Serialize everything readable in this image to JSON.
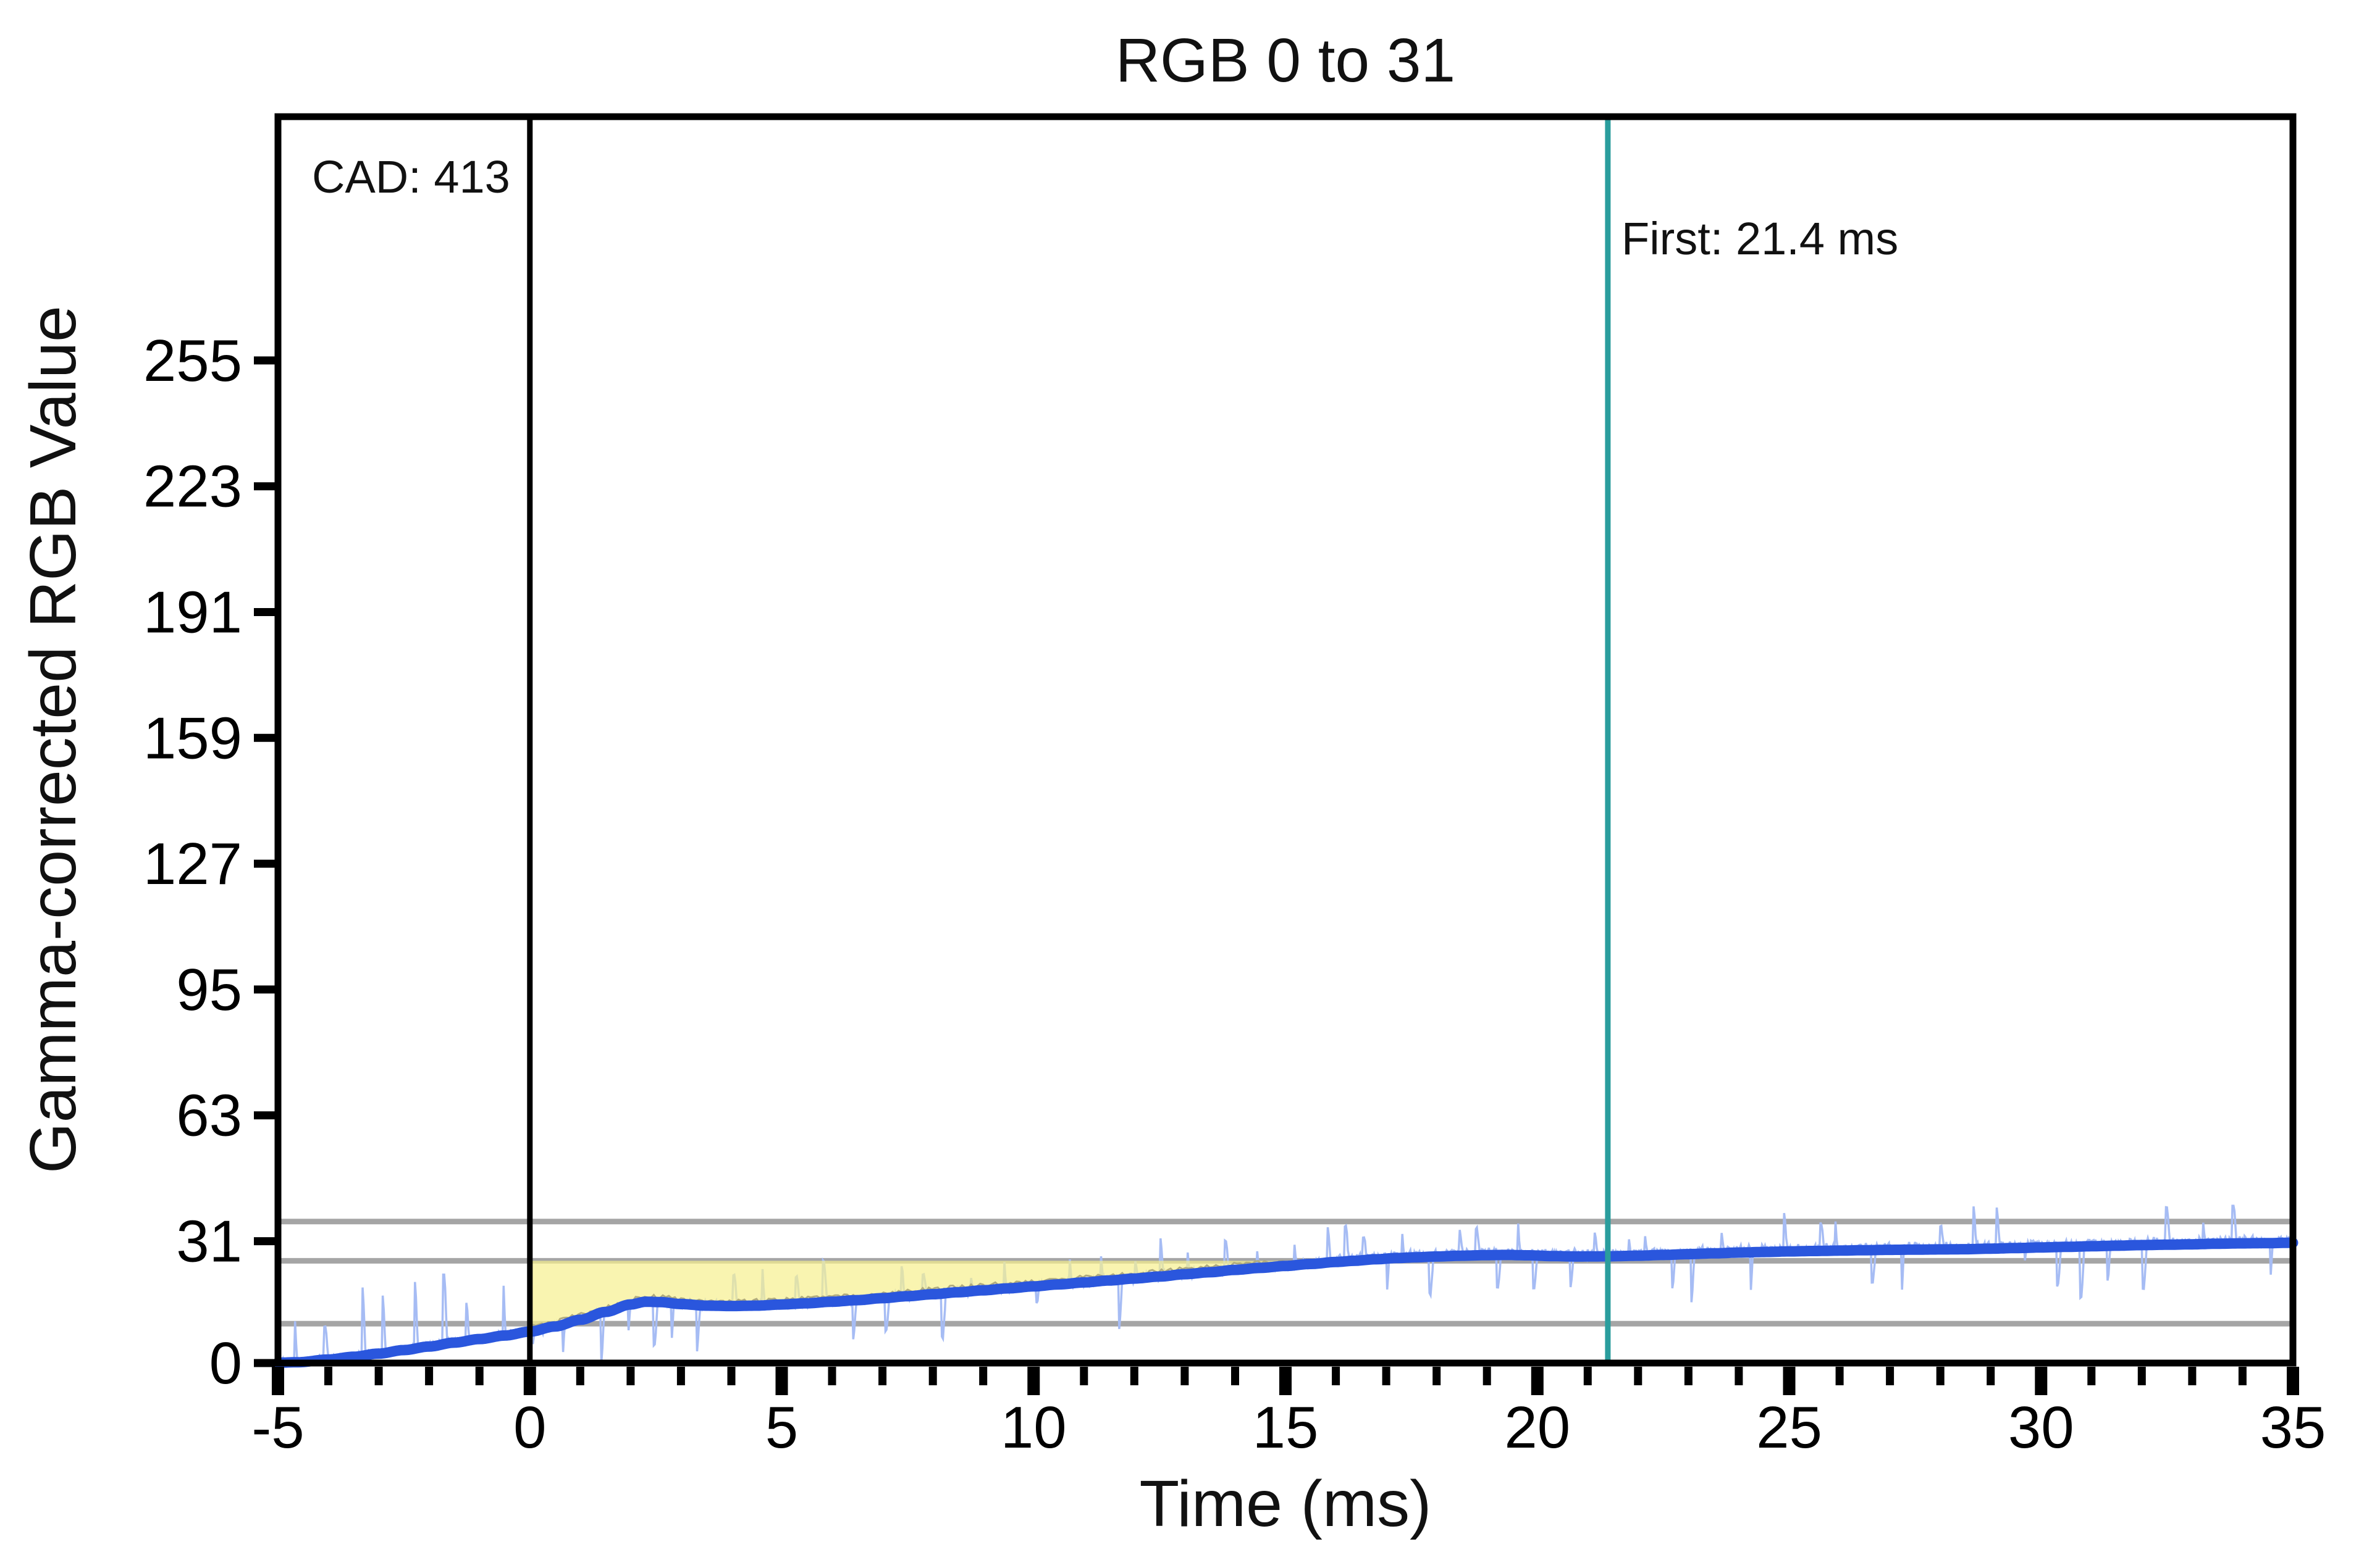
{
  "chart_data": {
    "type": "line",
    "title": "RGB 0 to 31",
    "xlabel": "Time (ms)",
    "ylabel": "Gamma-corrected RGB Value",
    "xlim": [
      -5,
      35
    ],
    "ylim": [
      0,
      317
    ],
    "x_major_ticks": [
      -5,
      0,
      5,
      10,
      15,
      20,
      25,
      30,
      35
    ],
    "x_minor_step": 1,
    "y_ticks": [
      0,
      31,
      63,
      95,
      127,
      159,
      191,
      223,
      255
    ],
    "grid": "off",
    "legend": "none",
    "annotations": {
      "cad": "CAD: 413",
      "first": "First: 21.4 ms"
    },
    "vertical_lines": [
      {
        "name": "transition-start",
        "x": 0,
        "color": "#000000"
      },
      {
        "name": "first-response",
        "x": 21.4,
        "color": "#2A9D9D"
      }
    ],
    "tolerance_lines": {
      "values": [
        10,
        26,
        36
      ],
      "color": "#A5A5A5"
    },
    "deviation_area": {
      "x_start": 0,
      "x_end": 16.35,
      "top_value": 26,
      "color": "#F6EF8E",
      "opacity": 0.7,
      "edge_color": "#B0AB7E"
    },
    "series": [
      {
        "name": "raw",
        "color": "#A6BCF4",
        "style": "noisy",
        "noise_seed": 42,
        "spike_interval_ms": 0.45,
        "spike_amplitude_rgb": 9,
        "pre_zero_max": 22.5,
        "post_max": 40
      },
      {
        "name": "smoothed",
        "color": "#2A56DD",
        "keypoints": [
          [
            -5,
            0.1
          ],
          [
            -4.6,
            0.2
          ],
          [
            -4,
            0.9
          ],
          [
            -3.5,
            1.6
          ],
          [
            -3,
            2.4
          ],
          [
            -2.5,
            3.3
          ],
          [
            -2,
            4.2
          ],
          [
            -1.5,
            5.2
          ],
          [
            -1,
            6.1
          ],
          [
            -0.5,
            7.0
          ],
          [
            0,
            8.0
          ],
          [
            0.5,
            9.3
          ],
          [
            1,
            11.0
          ],
          [
            1.5,
            13.0
          ],
          [
            2,
            14.9
          ],
          [
            2.3,
            15.6
          ],
          [
            2.6,
            15.5
          ],
          [
            3,
            15.0
          ],
          [
            3.5,
            14.6
          ],
          [
            4,
            14.5
          ],
          [
            4.5,
            14.6
          ],
          [
            5,
            14.9
          ],
          [
            5.5,
            15.2
          ],
          [
            6,
            15.6
          ],
          [
            6.5,
            16.0
          ],
          [
            7,
            16.5
          ],
          [
            7.5,
            17.0
          ],
          [
            8,
            17.5
          ],
          [
            8.5,
            18.0
          ],
          [
            9,
            18.5
          ],
          [
            9.5,
            19.0
          ],
          [
            10,
            19.5
          ],
          [
            10.5,
            20.0
          ],
          [
            11,
            20.5
          ],
          [
            11.5,
            21.0
          ],
          [
            12,
            21.5
          ],
          [
            12.5,
            22.0
          ],
          [
            13,
            22.6
          ],
          [
            13.5,
            23.1
          ],
          [
            14,
            23.7
          ],
          [
            14.5,
            24.2
          ],
          [
            15,
            24.7
          ],
          [
            15.5,
            25.2
          ],
          [
            16,
            25.7
          ],
          [
            16.35,
            26.0
          ],
          [
            16.8,
            26.4
          ],
          [
            17.2,
            26.7
          ],
          [
            17.6,
            26.9
          ],
          [
            18,
            27.1
          ],
          [
            18.5,
            27.3
          ],
          [
            19,
            27.45
          ],
          [
            19.4,
            27.5
          ],
          [
            19.8,
            27.4
          ],
          [
            20.3,
            27.2
          ],
          [
            20.8,
            27.1
          ],
          [
            21.4,
            27.15
          ],
          [
            22,
            27.3
          ],
          [
            22.5,
            27.5
          ],
          [
            23,
            27.7
          ],
          [
            23.5,
            27.9
          ],
          [
            24,
            28.1
          ],
          [
            24.5,
            28.25
          ],
          [
            25,
            28.4
          ],
          [
            25.5,
            28.5
          ],
          [
            26,
            28.6
          ],
          [
            26.5,
            28.7
          ],
          [
            27,
            28.8
          ],
          [
            27.5,
            28.85
          ],
          [
            28,
            28.9
          ],
          [
            28.5,
            28.95
          ],
          [
            29,
            29.1
          ],
          [
            29.5,
            29.25
          ],
          [
            30,
            29.4
          ],
          [
            30.5,
            29.55
          ],
          [
            31,
            29.7
          ],
          [
            31.5,
            29.85
          ],
          [
            32,
            30.0
          ],
          [
            32.5,
            30.1
          ],
          [
            33,
            30.2
          ],
          [
            33.5,
            30.35
          ],
          [
            34,
            30.45
          ],
          [
            34.5,
            30.5
          ],
          [
            35,
            30.6
          ]
        ]
      }
    ]
  }
}
